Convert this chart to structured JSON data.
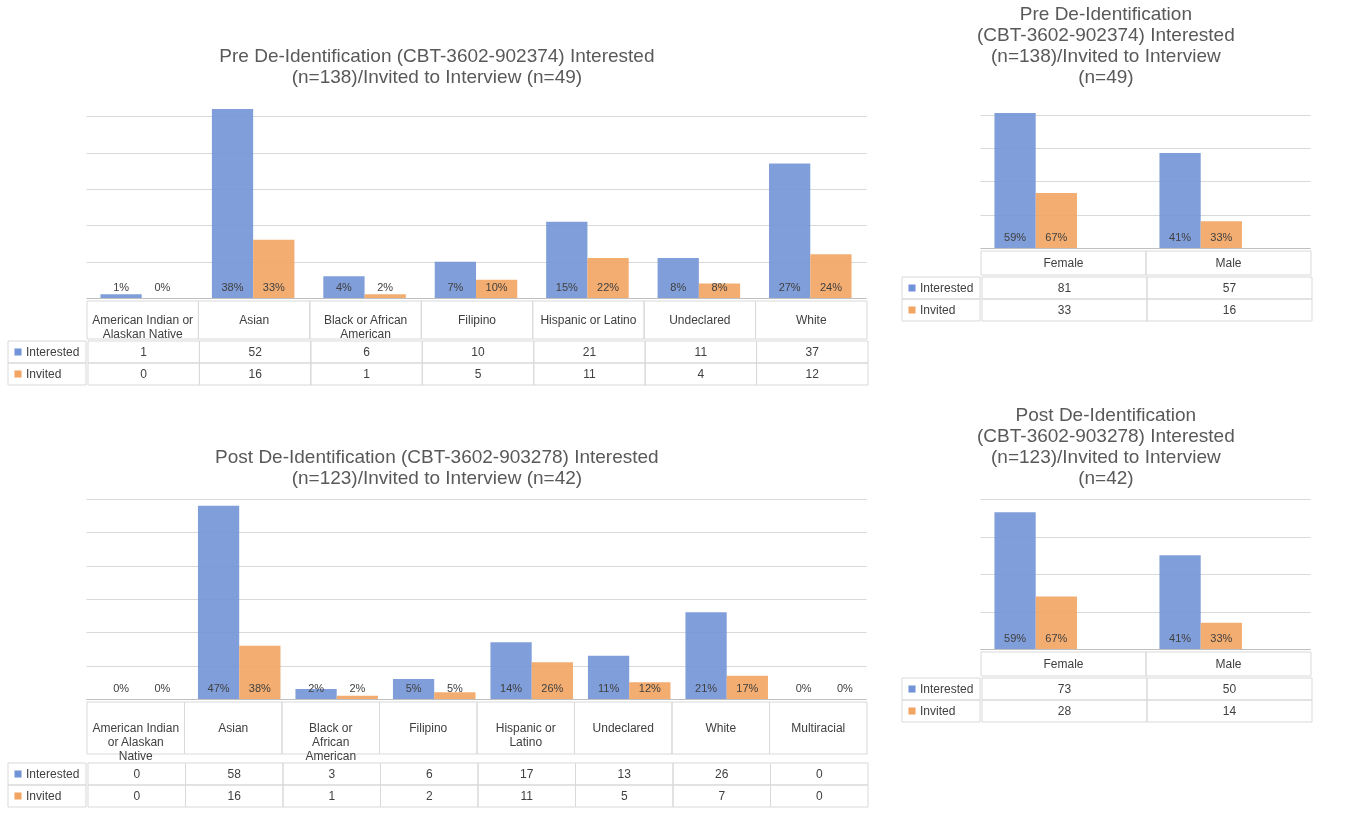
{
  "chart_data": [
    {
      "type": "bar",
      "title": "Pre De-Identification (CBT-3602-902374) Interested (n=138)/Invited to Interview (n=49)",
      "categories": [
        "American Indian or Alaskan Native",
        "Asian",
        "Black or African American",
        "Filipino",
        "Hispanic or Latino",
        "Undeclared",
        "White"
      ],
      "series": [
        {
          "name": "Interested",
          "color": "#7294d6",
          "values": [
            1,
            52,
            6,
            10,
            21,
            11,
            37
          ]
        },
        {
          "name": "Invited",
          "color": "#f2a462",
          "values": [
            0,
            16,
            1,
            5,
            11,
            4,
            12
          ]
        }
      ],
      "annotations": [
        {
          "text": "1%",
          "x": "American Indian or Alaskan Native",
          "y": 0
        },
        {
          "text": "0%",
          "x": "American Indian or Alaskan Native",
          "y": 0
        },
        {
          "text": "38%",
          "x": "Asian",
          "y": 0
        },
        {
          "text": "33%",
          "x": "Asian",
          "y": 0
        },
        {
          "text": "4%",
          "x": "Black or African American",
          "y": 0
        },
        {
          "text": "2%",
          "x": "Black or African American",
          "y": 0
        },
        {
          "text": "7%",
          "x": "Filipino",
          "y": 0
        },
        {
          "text": "10%",
          "x": "Filipino",
          "y": 0
        },
        {
          "text": "15%",
          "x": "Hispanic or Latino",
          "y": 0
        },
        {
          "text": "22%",
          "x": "Hispanic or Latino",
          "y": 0
        },
        {
          "text": "8%",
          "x": "Undeclared",
          "y": 0
        },
        {
          "text": "8%",
          "x": "Undeclared",
          "y": 0
        },
        {
          "text": "27%",
          "x": "White",
          "y": 0
        },
        {
          "text": "24%",
          "x": "White",
          "y": 0
        }
      ],
      "grid": "y",
      "legend": "bottom",
      "tick_labels": "x",
      "data_labels": true
    },
    {
      "type": "bar",
      "title": "Pre De-Identification (CBT-3602-902374) Interested (n=138)/Invited to Interview (n=49)",
      "categories": [
        "Female",
        "Male"
      ],
      "series": [
        {
          "name": "Interested",
          "color": "#7294d6",
          "values": [
            81,
            57
          ]
        },
        {
          "name": "Invited",
          "color": "#f2a462",
          "values": [
            33,
            16
          ]
        }
      ],
      "annotations": [
        "59%",
        "67%",
        "41%",
        "33%"
      ],
      "grid": "y",
      "legend": "bottom",
      "tick_labels": "x",
      "data_labels": true
    },
    {
      "type": "bar",
      "title": "Post De-Identification (CBT-3602-903278) Interested (n=123)/Invited to Interview (n=42)",
      "categories": [
        "American Indian or Alaskan Native",
        "Asian",
        "Black or African American",
        "Filipino",
        "Hispanic or Latino",
        "Undeclared",
        "White",
        "Multiracial"
      ],
      "series": [
        {
          "name": "Interested",
          "color": "#7294d6",
          "values": [
            0,
            58,
            3,
            6,
            17,
            13,
            26,
            0
          ]
        },
        {
          "name": "Invited",
          "color": "#f2a462",
          "values": [
            0,
            16,
            1,
            2,
            11,
            5,
            7,
            0
          ]
        }
      ],
      "annotations": [
        {
          "text": "0%",
          "x": "American Indian or Alaskan Native",
          "y": 0
        },
        {
          "text": "0%",
          "x": "American Indian or Alaskan Native",
          "y": 0
        },
        {
          "text": "47%",
          "x": "Asian",
          "y": 0
        },
        {
          "text": "38%",
          "x": "Asian",
          "y": 0
        },
        {
          "text": "2%",
          "x": "Black or African American",
          "y": 0
        },
        {
          "text": "2%",
          "x": "Black or African American",
          "y": 0
        },
        {
          "text": "5%",
          "x": "Filipino",
          "y": 0
        },
        {
          "text": "5%",
          "x": "Filipino",
          "y": 0
        },
        {
          "text": "14%",
          "x": "Hispanic or Latino",
          "y": 0
        },
        {
          "text": "26%",
          "x": "Hispanic or Latino",
          "y": 0
        },
        {
          "text": "11%",
          "x": "Undeclared",
          "y": 0
        },
        {
          "text": "12%",
          "x": "Undeclared",
          "y": 0
        },
        {
          "text": "21%",
          "x": "White",
          "y": 0
        },
        {
          "text": "17%",
          "x": "White",
          "y": 0
        },
        {
          "text": "0%",
          "x": "Multiracial",
          "y": 0
        },
        {
          "text": "0%",
          "x": "Multiracial",
          "y": 0
        }
      ],
      "grid": "y",
      "legend": "bottom",
      "tick_labels": "x",
      "data_labels": true
    },
    {
      "type": "bar",
      "title": "Post De-Identification (CBT-3602-903278) Interested (n=123)/Invited to Interview (n=42)",
      "categories": [
        "Female",
        "Male"
      ],
      "series": [
        {
          "name": "Interested",
          "color": "#7294d6",
          "values": [
            73,
            50
          ]
        },
        {
          "name": "Invited",
          "color": "#f2a462",
          "values": [
            28,
            14
          ]
        }
      ],
      "annotations": [
        "59%",
        "67%",
        "41%",
        "33%"
      ],
      "grid": "y",
      "legend": "bottom",
      "tick_labels": "x",
      "data_labels": true
    }
  ]
}
